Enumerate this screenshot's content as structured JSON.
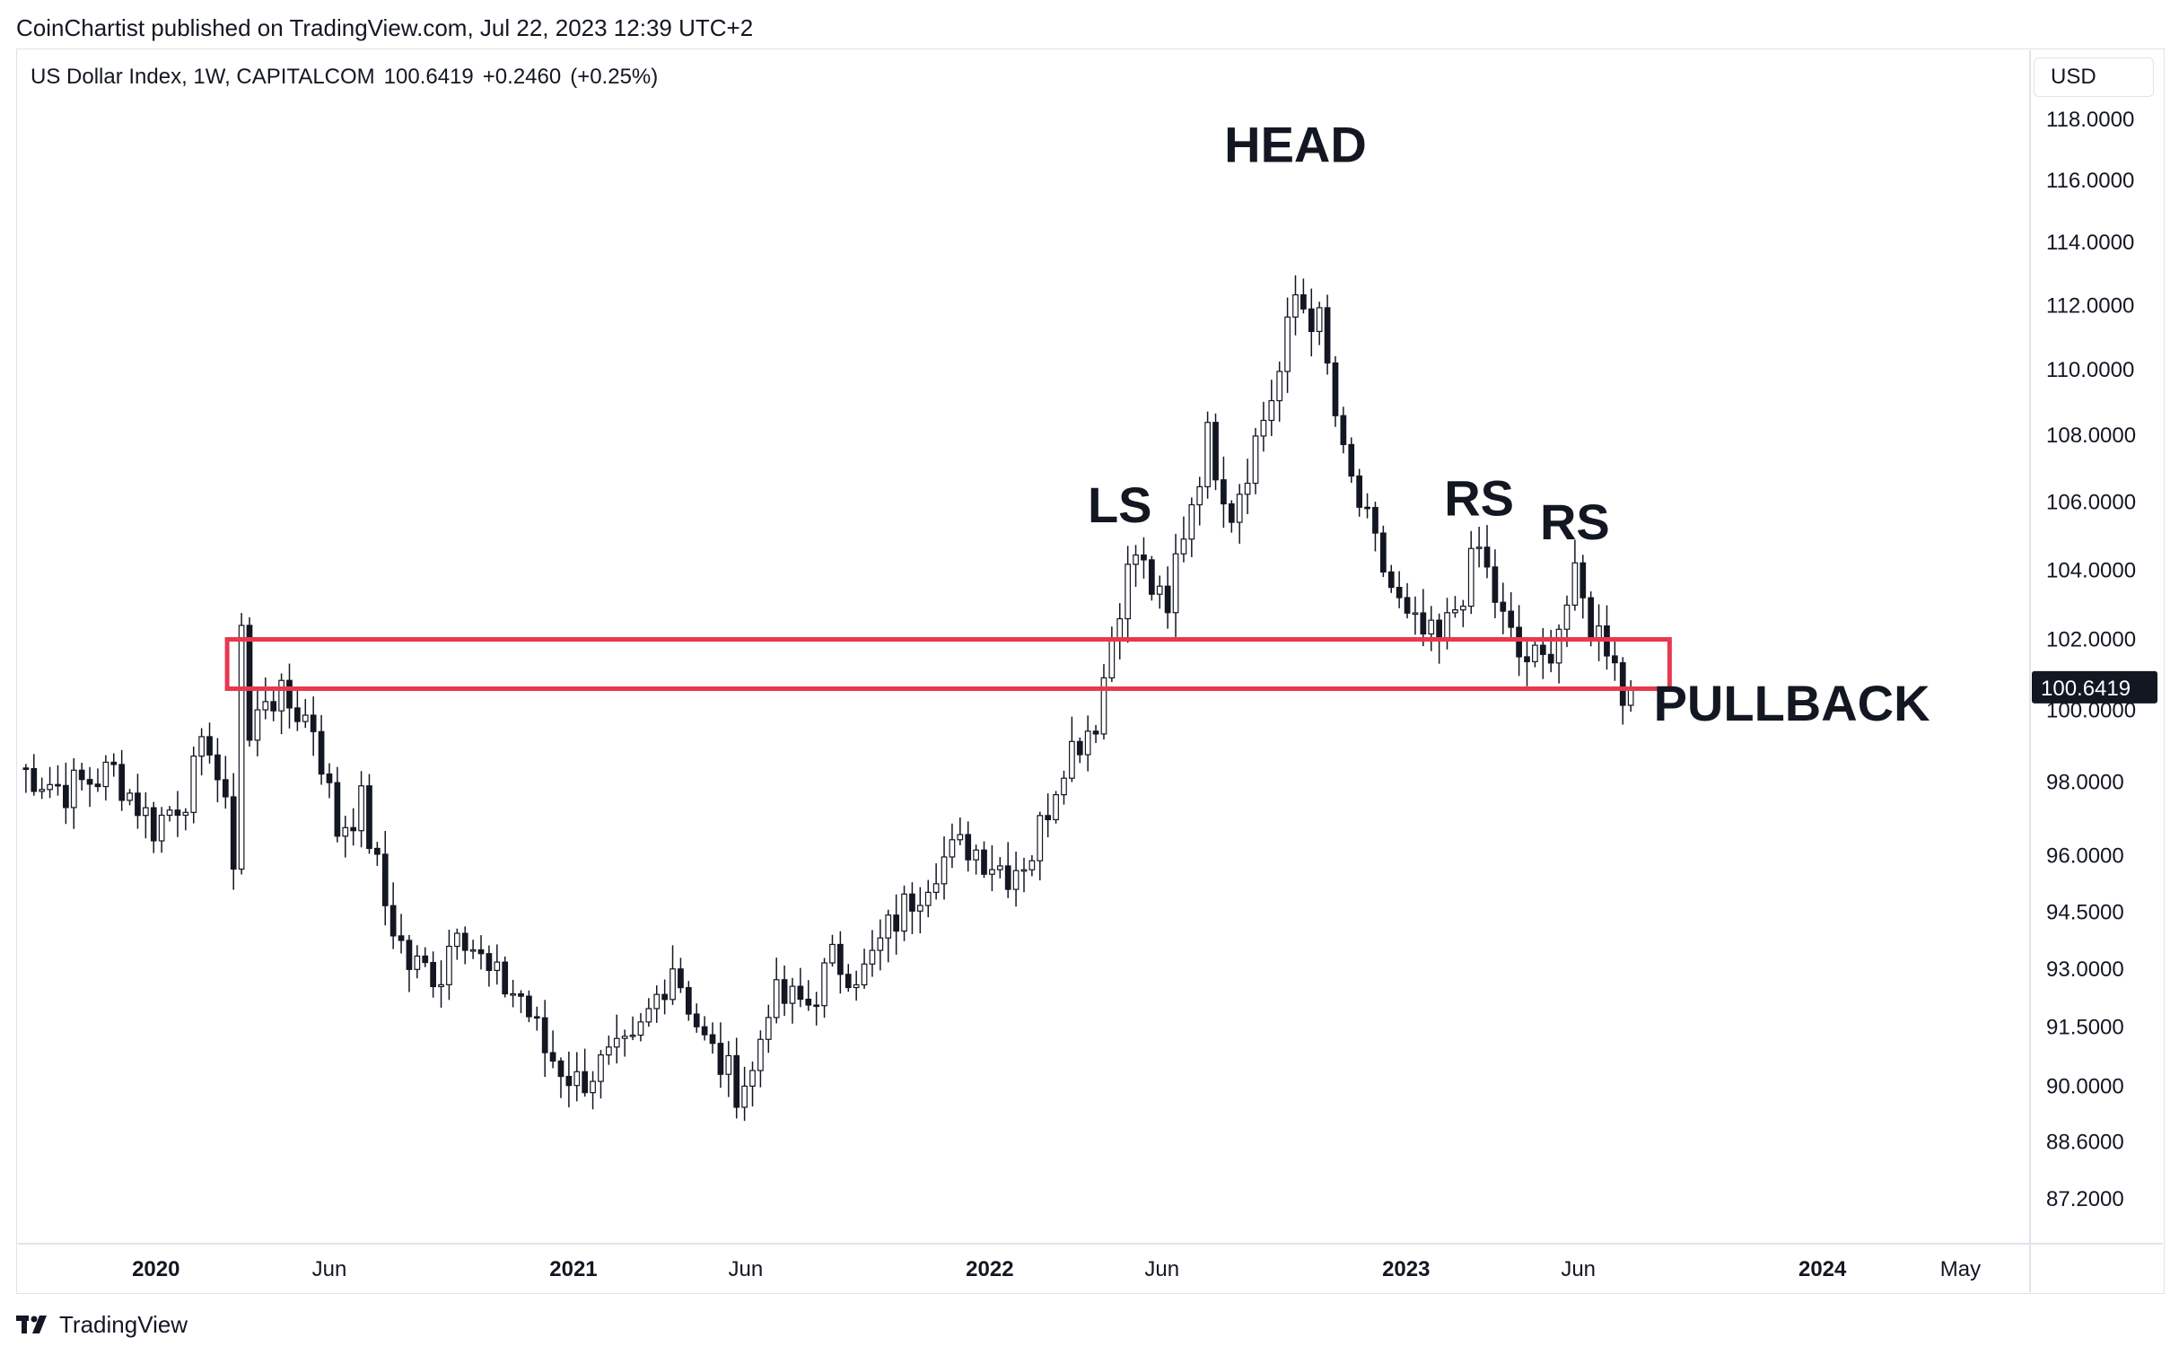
{
  "header": {
    "publisher_line": "CoinChartist published on TradingView.com, Jul 22, 2023 12:39 UTC+2"
  },
  "legend": {
    "symbol": "US Dollar Index, 1W, CAPITALCOM",
    "last": "100.6419",
    "change": "+0.2460",
    "change_pct": "(+0.25%)"
  },
  "currency_button": "USD",
  "footer": {
    "brand": "TradingView"
  },
  "colors": {
    "zone": "#e8384f",
    "price_tag_bg": "#131722",
    "grid_border": "#e0e3eb"
  },
  "chart_data": {
    "type": "candlestick",
    "title": "",
    "y_axis": {
      "scale": "log",
      "range": [
        85.6,
        118.5
      ],
      "tick_labels": [
        "118.0000",
        "116.0000",
        "114.0000",
        "112.0000",
        "110.0000",
        "108.0000",
        "106.0000",
        "104.0000",
        "102.0000",
        "100.0000",
        "98.0000",
        "96.0000",
        "94.5000",
        "93.0000",
        "91.5000",
        "90.0000",
        "88.6000",
        "87.2000"
      ],
      "tick_values": [
        118,
        116,
        114,
        112,
        110,
        108,
        106,
        104,
        102,
        100,
        98,
        96,
        94.5,
        93,
        91.5,
        90,
        88.6,
        87.2
      ]
    },
    "x_axis": {
      "range": [
        "2019-09-02",
        "2024-07-01"
      ],
      "ticks": [
        {
          "label": "2020",
          "date": "2020-01-01",
          "bold": true
        },
        {
          "label": "Jun",
          "date": "2020-06-01",
          "bold": false
        },
        {
          "label": "2021",
          "date": "2021-01-01",
          "bold": true
        },
        {
          "label": "Jun",
          "date": "2021-06-01",
          "bold": false
        },
        {
          "label": "2022",
          "date": "2022-01-01",
          "bold": true
        },
        {
          "label": "Jun",
          "date": "2022-06-01",
          "bold": false
        },
        {
          "label": "2023",
          "date": "2023-01-01",
          "bold": true
        },
        {
          "label": "Jun",
          "date": "2023-06-01",
          "bold": false
        },
        {
          "label": "2024",
          "date": "2024-01-01",
          "bold": true
        },
        {
          "label": "May",
          "date": "2024-05-01",
          "bold": false
        }
      ]
    },
    "price_tag": "100.6419",
    "zone": {
      "from_date": "2020-03-16",
      "to_date": "2023-08-20",
      "low": 100.6,
      "high": 102.0
    },
    "annotations": [
      {
        "text": "HEAD",
        "date": "2022-09-26",
        "value": 116.6
      },
      {
        "text": "LS",
        "date": "2022-04-25",
        "value": 105.4
      },
      {
        "text": "RS",
        "date": "2023-03-06",
        "value": 105.6
      },
      {
        "text": "RS",
        "date": "2023-05-29",
        "value": 104.9
      },
      {
        "text": "PULLBACK",
        "date": "2023-08-06",
        "value": 99.7
      }
    ],
    "weekly_close_path": [
      [
        "2019-09-02",
        98.4
      ],
      [
        "2019-10-14",
        97.8
      ],
      [
        "2019-11-25",
        98.3
      ],
      [
        "2019-12-30",
        96.8
      ],
      [
        "2020-01-27",
        97.7
      ],
      [
        "2020-02-17",
        99.2
      ],
      [
        "2020-03-09",
        96.0
      ],
      [
        "2020-03-16",
        102.5
      ],
      [
        "2020-03-23",
        99.1
      ],
      [
        "2020-04-06",
        100.5
      ],
      [
        "2020-05-04",
        100.0
      ],
      [
        "2020-05-18",
        99.6
      ],
      [
        "2020-06-08",
        96.7
      ],
      [
        "2020-06-29",
        97.4
      ],
      [
        "2020-07-20",
        94.7
      ],
      [
        "2020-08-10",
        93.1
      ],
      [
        "2020-09-07",
        92.9
      ],
      [
        "2020-09-21",
        94.4
      ],
      [
        "2020-10-19",
        92.8
      ],
      [
        "2020-11-16",
        92.3
      ],
      [
        "2020-12-07",
        90.9
      ],
      [
        "2021-01-04",
        90.1
      ],
      [
        "2021-01-25",
        90.5
      ],
      [
        "2021-02-22",
        90.9
      ],
      [
        "2021-03-29",
        93.2
      ],
      [
        "2021-04-26",
        91.1
      ],
      [
        "2021-05-24",
        90.0
      ],
      [
        "2021-06-07",
        90.3
      ],
      [
        "2021-06-21",
        92.2
      ],
      [
        "2021-07-26",
        92.1
      ],
      [
        "2021-08-16",
        93.2
      ],
      [
        "2021-09-13",
        92.9
      ],
      [
        "2021-10-04",
        94.0
      ],
      [
        "2021-11-15",
        95.8
      ],
      [
        "2021-12-13",
        96.3
      ],
      [
        "2022-01-17",
        95.6
      ],
      [
        "2022-02-07",
        96.1
      ],
      [
        "2022-03-07",
        98.7
      ],
      [
        "2022-04-04",
        99.8
      ],
      [
        "2022-04-25",
        103.2
      ],
      [
        "2022-05-09",
        104.5
      ],
      [
        "2022-06-06",
        102.5
      ],
      [
        "2022-06-13",
        104.3
      ],
      [
        "2022-07-11",
        107.9
      ],
      [
        "2022-08-01",
        105.8
      ],
      [
        "2022-09-12",
        109.9
      ],
      [
        "2022-09-26",
        112.3
      ],
      [
        "2022-10-17",
        111.4
      ],
      [
        "2022-11-07",
        107.2
      ],
      [
        "2022-12-05",
        104.6
      ],
      [
        "2023-01-02",
        102.4
      ],
      [
        "2023-01-30",
        101.8
      ],
      [
        "2023-03-06",
        104.6
      ],
      [
        "2023-03-27",
        102.5
      ],
      [
        "2023-04-10",
        101.5
      ],
      [
        "2023-05-01",
        101.3
      ],
      [
        "2023-05-29",
        103.6
      ],
      [
        "2023-06-12",
        102.4
      ],
      [
        "2023-07-03",
        101.7
      ],
      [
        "2023-07-10",
        100.1
      ],
      [
        "2023-07-17",
        100.6
      ]
    ]
  }
}
